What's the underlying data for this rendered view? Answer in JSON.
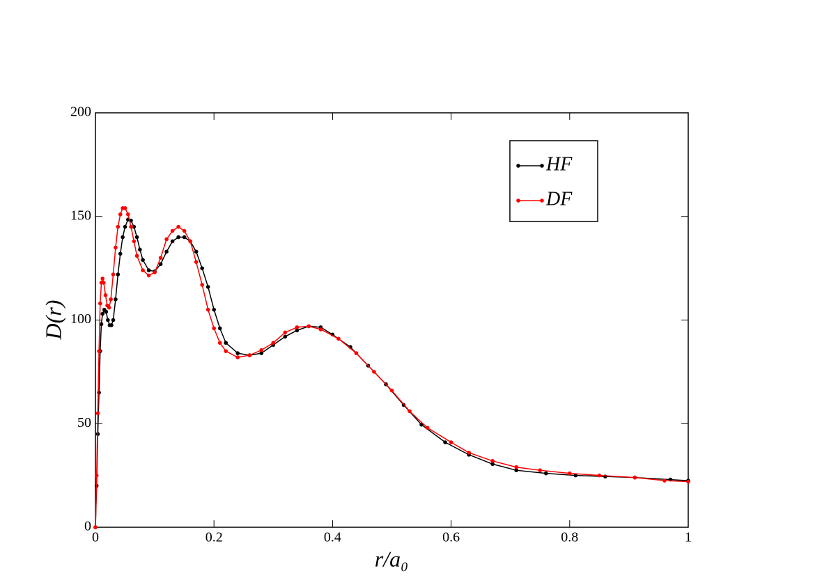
{
  "chart_data": {
    "type": "line",
    "xlabel": "r/a₀",
    "ylabel": "D(r)",
    "xlim": [
      0,
      1
    ],
    "ylim": [
      0,
      200
    ],
    "xticks": [
      0,
      0.2,
      0.4,
      0.6,
      0.8,
      1
    ],
    "yticks": [
      0,
      50,
      100,
      150,
      200
    ],
    "legend": "upper right",
    "series": [
      {
        "name": "HF",
        "color": "#000000",
        "x": [
          0,
          0.002,
          0.004,
          0.006,
          0.008,
          0.01,
          0.012,
          0.015,
          0.018,
          0.021,
          0.024,
          0.027,
          0.03,
          0.034,
          0.038,
          0.042,
          0.046,
          0.05,
          0.055,
          0.06,
          0.065,
          0.07,
          0.075,
          0.08,
          0.09,
          0.1,
          0.11,
          0.12,
          0.13,
          0.14,
          0.15,
          0.16,
          0.17,
          0.18,
          0.19,
          0.2,
          0.21,
          0.22,
          0.24,
          0.26,
          0.28,
          0.3,
          0.32,
          0.34,
          0.36,
          0.38,
          0.4,
          0.43,
          0.46,
          0.49,
          0.52,
          0.55,
          0.59,
          0.63,
          0.67,
          0.71,
          0.76,
          0.81,
          0.86,
          0.91,
          0.97,
          1
        ],
        "values": [
          0,
          20,
          45,
          65,
          85,
          98,
          103,
          105,
          104,
          100,
          97.5,
          97.5,
          100,
          110,
          122,
          132,
          140,
          145,
          148.5,
          148,
          145,
          140,
          134,
          129,
          124,
          123.5,
          127,
          133,
          138,
          140,
          140,
          138,
          133,
          125,
          116,
          105,
          96,
          89,
          84,
          83,
          84,
          88,
          92,
          95,
          97,
          96.5,
          93,
          87,
          78,
          69,
          59,
          49.5,
          41,
          35,
          30.5,
          27.5,
          26,
          25,
          24.5,
          24,
          23,
          22.5
        ]
      },
      {
        "name": "DF",
        "color": "#ff0000",
        "x": [
          0,
          0.002,
          0.004,
          0.006,
          0.008,
          0.01,
          0.012,
          0.014,
          0.017,
          0.02,
          0.023,
          0.026,
          0.03,
          0.034,
          0.038,
          0.042,
          0.046,
          0.05,
          0.055,
          0.06,
          0.065,
          0.07,
          0.08,
          0.09,
          0.1,
          0.11,
          0.12,
          0.13,
          0.14,
          0.15,
          0.16,
          0.17,
          0.18,
          0.19,
          0.2,
          0.21,
          0.22,
          0.24,
          0.26,
          0.28,
          0.3,
          0.32,
          0.34,
          0.36,
          0.38,
          0.41,
          0.44,
          0.47,
          0.5,
          0.53,
          0.56,
          0.6,
          0.63,
          0.67,
          0.71,
          0.75,
          0.8,
          0.85,
          0.91,
          0.96,
          1
        ],
        "values": [
          0,
          25,
          55,
          85,
          108,
          118,
          120,
          118,
          112,
          107,
          106,
          110,
          122,
          135,
          145,
          151,
          154,
          154,
          151,
          145,
          138,
          131,
          124,
          121.5,
          123,
          130,
          139,
          143,
          145,
          143,
          138,
          128,
          117,
          105,
          96,
          89,
          85,
          82,
          83,
          85.5,
          89,
          94,
          96.5,
          97,
          95.5,
          91,
          84,
          75,
          66,
          56,
          48,
          41,
          36,
          32,
          29,
          27.5,
          26,
          25,
          24,
          22.5,
          22
        ]
      }
    ]
  }
}
